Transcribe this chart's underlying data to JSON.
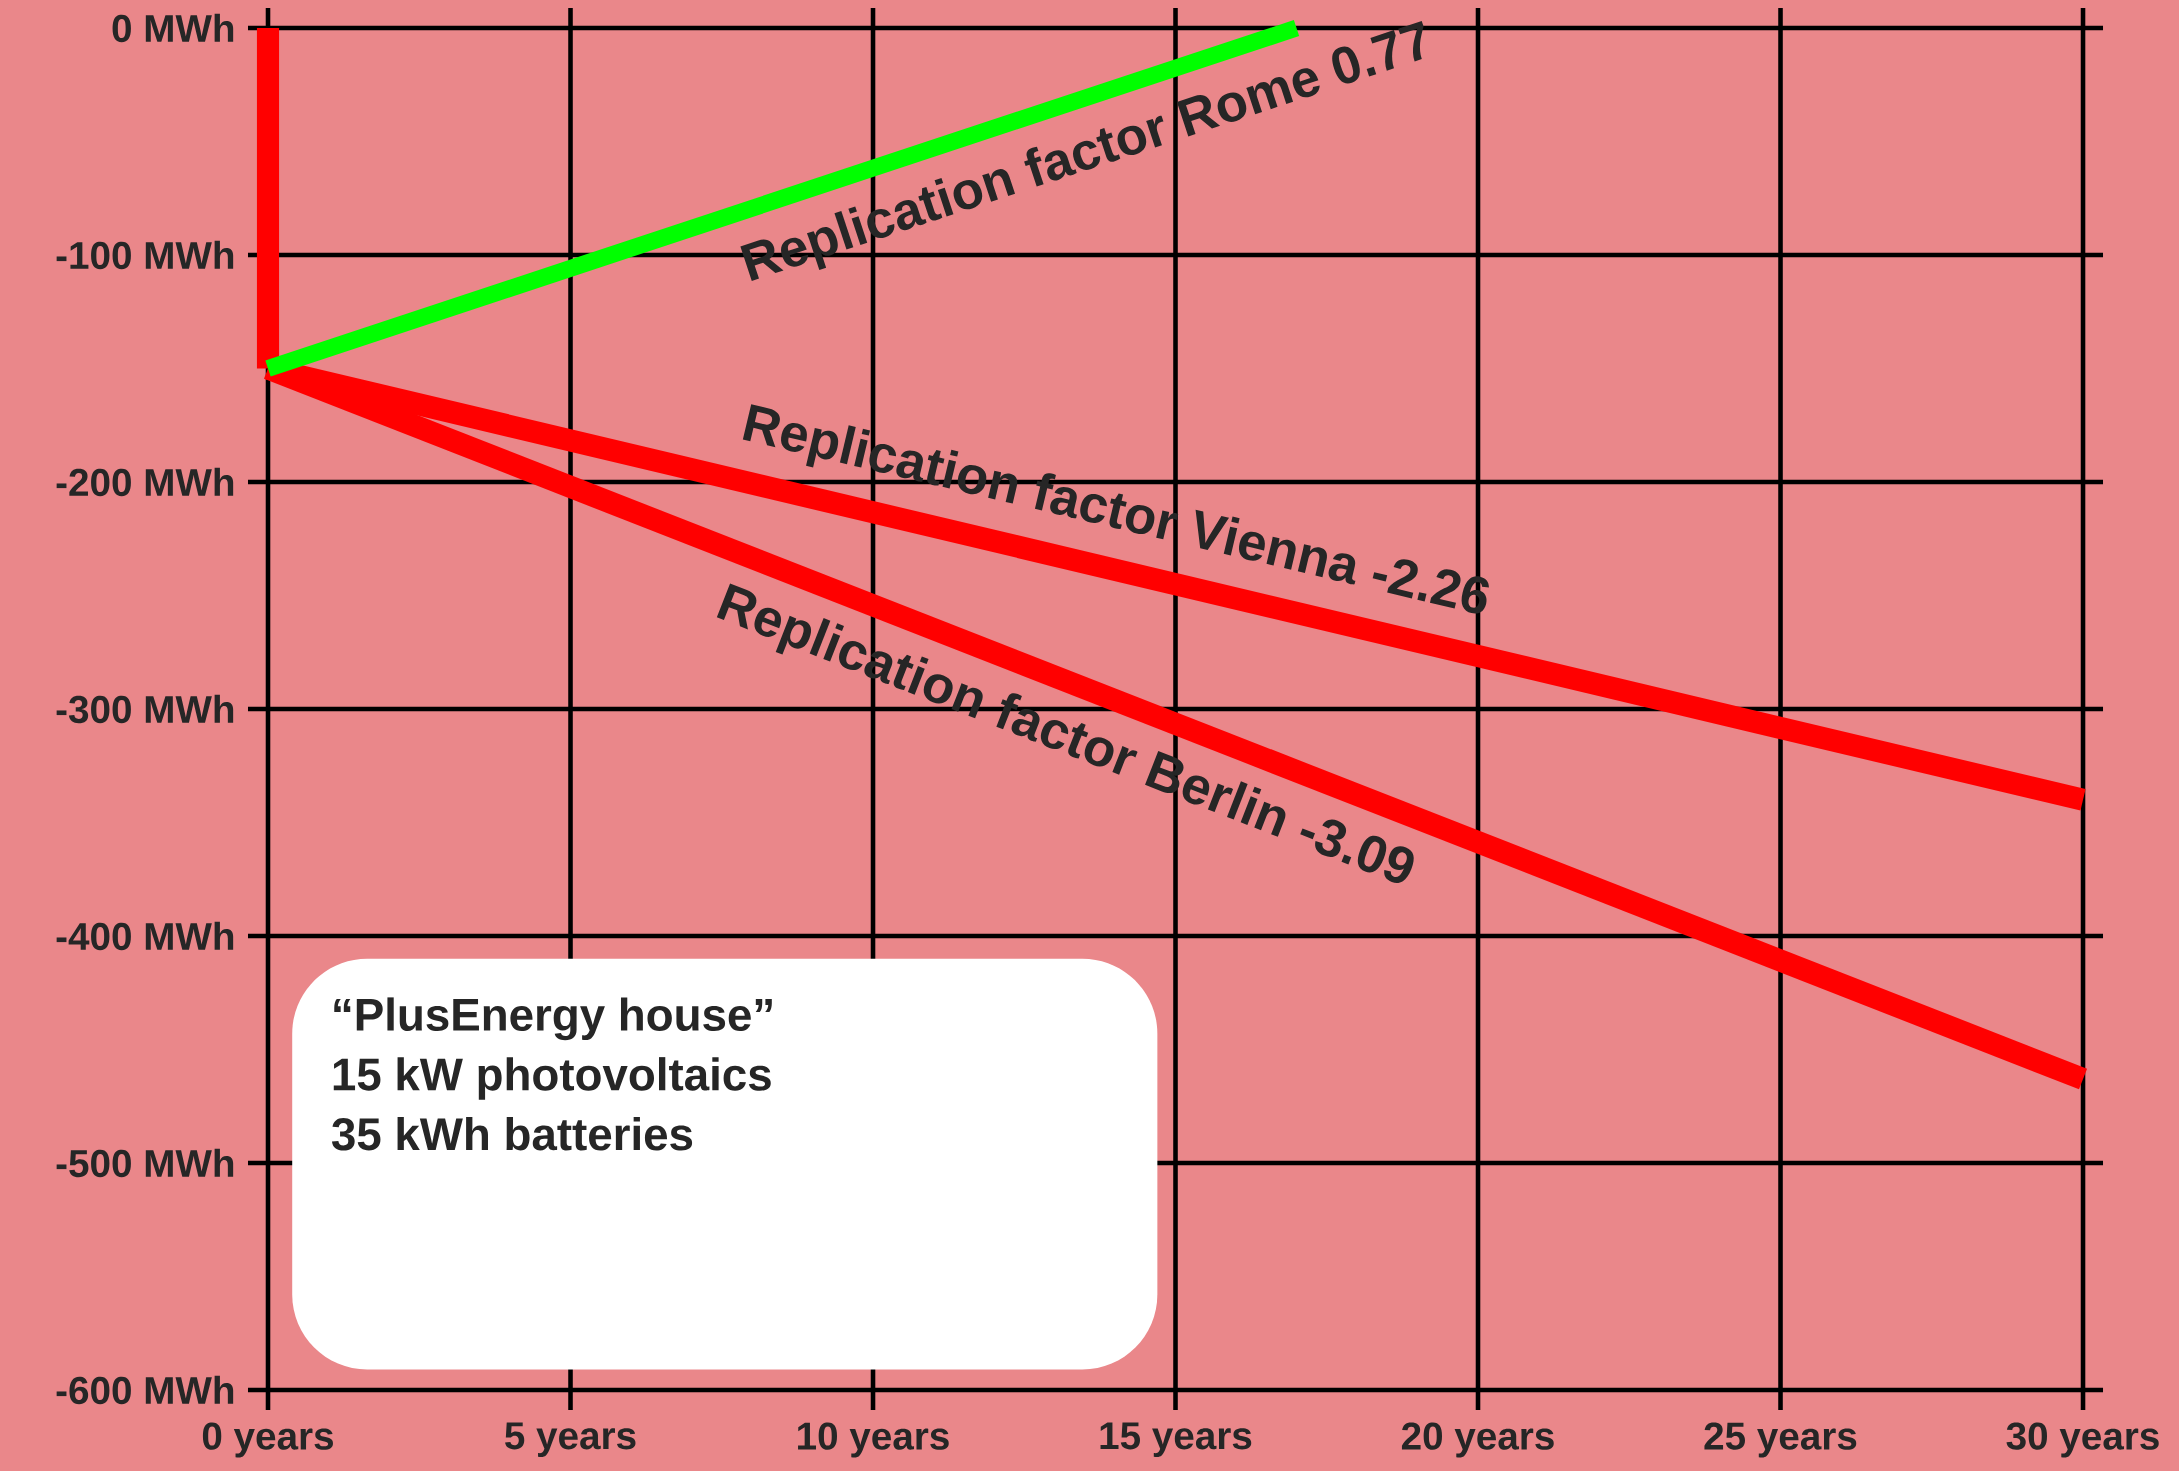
{
  "chart_data": {
    "type": "line",
    "xlim": [
      0,
      30
    ],
    "ylim": [
      -600,
      0
    ],
    "xticks": [
      {
        "value": 0,
        "label": "0 years"
      },
      {
        "value": 5,
        "label": "5 years"
      },
      {
        "value": 10,
        "label": "10 years"
      },
      {
        "value": 15,
        "label": "15 years"
      },
      {
        "value": 20,
        "label": "20 years"
      },
      {
        "value": 25,
        "label": "25 years"
      },
      {
        "value": 30,
        "label": "30 years"
      }
    ],
    "yticks": [
      {
        "value": 0,
        "label": "0 MWh"
      },
      {
        "value": -100,
        "label": "-100 MWh"
      },
      {
        "value": -200,
        "label": "-200 MWh"
      },
      {
        "value": -300,
        "label": "-300 MWh"
      },
      {
        "value": -400,
        "label": "-400 MWh"
      },
      {
        "value": -500,
        "label": "-500 MWh"
      },
      {
        "value": -600,
        "label": "-600 MWh"
      }
    ],
    "grid": true,
    "series": [
      {
        "color": "#ff0000",
        "x": [
          0,
          0
        ],
        "values": [
          0,
          -150
        ]
      },
      {
        "name": "Replication factor Vienna -2.26",
        "color": "#ff0000",
        "x": [
          0,
          30
        ],
        "values": [
          -150,
          -340
        ]
      },
      {
        "name": "Replication factor Berlin -3.09",
        "color": "#ff0000",
        "x": [
          0,
          30
        ],
        "values": [
          -150,
          -463
        ]
      },
      {
        "name": "Replication factor Rome 0.77",
        "color": "#00ff00",
        "x": [
          0,
          17
        ],
        "values": [
          -150,
          0
        ]
      }
    ],
    "annotations": [
      "“PlusEnergy house”",
      "15 kW photovoltaics",
      "35 kWh batteries"
    ]
  }
}
